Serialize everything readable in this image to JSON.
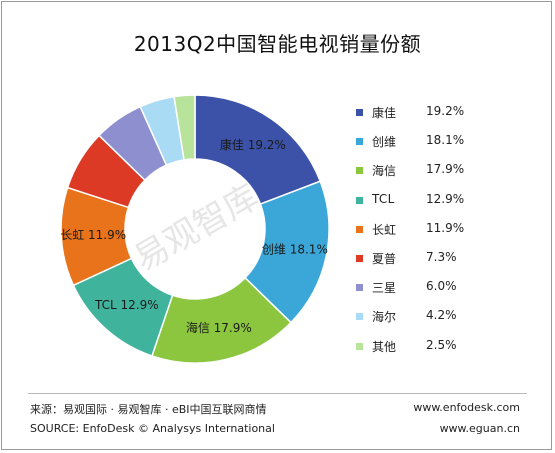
{
  "chart_data": {
    "type": "pie",
    "title": "2013Q2中国智能电视销量份额",
    "slices": [
      {
        "name": "康佳",
        "value": 19.2,
        "label": "19.2%",
        "color": "#3b52a8"
      },
      {
        "name": "创维",
        "value": 18.1,
        "label": "18.1%",
        "color": "#3aa7d8"
      },
      {
        "name": "海信",
        "value": 17.9,
        "label": "17.9%",
        "color": "#8cc63f"
      },
      {
        "name": "TCL",
        "value": 12.9,
        "label": "12.9%",
        "color": "#3fb39c"
      },
      {
        "name": "长虹",
        "value": 11.9,
        "label": "11.9%",
        "color": "#e8731b"
      },
      {
        "name": "夏普",
        "value": 7.3,
        "label": "7.3%",
        "color": "#dc3a25"
      },
      {
        "name": "三星",
        "value": 6.0,
        "label": "6.0%",
        "color": "#8d8fcf"
      },
      {
        "name": "海尔",
        "value": 4.2,
        "label": "4.2%",
        "color": "#a9dcf4"
      },
      {
        "name": "其他",
        "value": 2.5,
        "label": "2.5%",
        "color": "#b7e39a"
      }
    ],
    "legend_position": "right",
    "watermark": "易观智库"
  },
  "footer": {
    "source_cn": "来源：易观国际 · 易观智库 · eBI中国互联网商情",
    "source_en": "SOURCE: EnfoDesk © Analysys International",
    "url1": "www.enfodesk.com",
    "url2": "www.eguan.cn"
  }
}
